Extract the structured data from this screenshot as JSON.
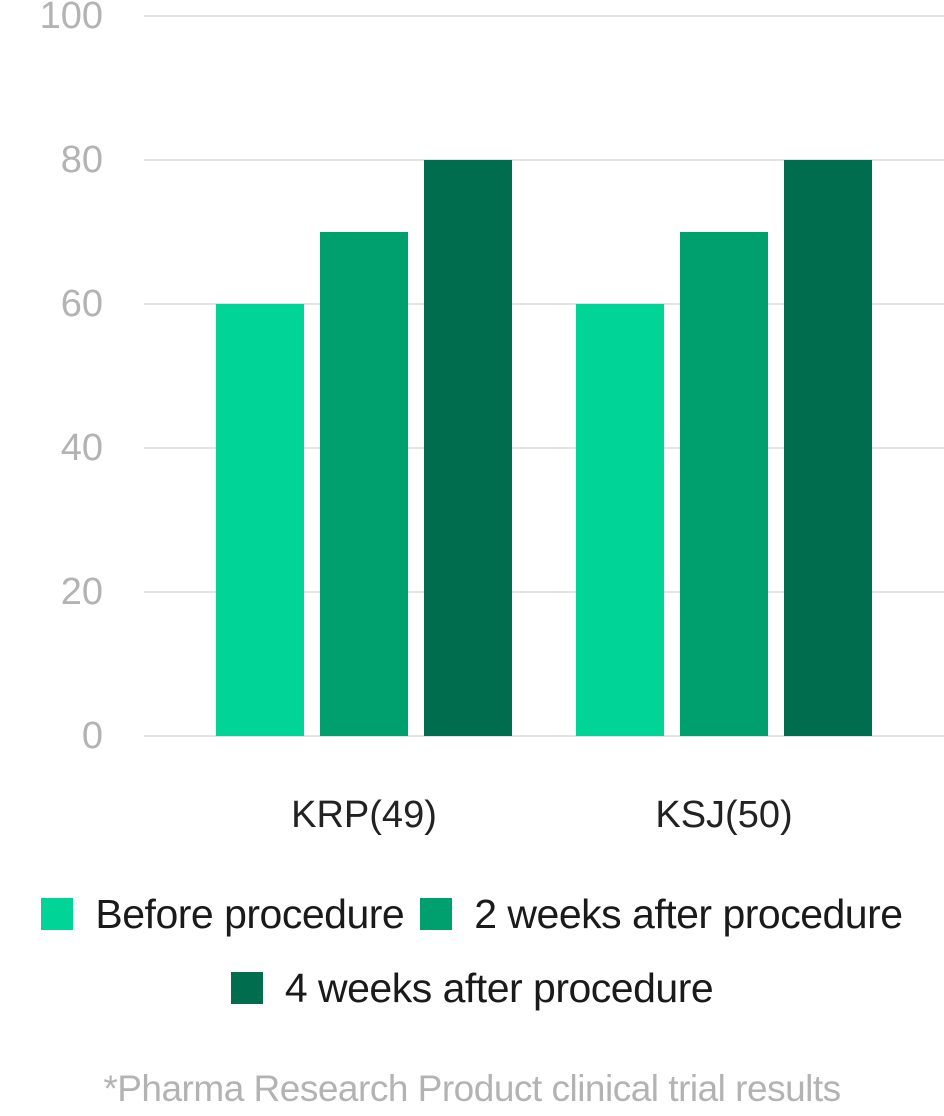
{
  "chart_data": {
    "type": "bar",
    "title": "",
    "xlabel": "",
    "ylabel": "",
    "categories": [
      "KRP(49)",
      "KSJ(50)"
    ],
    "series": [
      {
        "name": "Before procedure",
        "values": [
          60,
          60
        ],
        "color": "#00d496"
      },
      {
        "name": "2 weeks after procedure",
        "values": [
          70,
          70
        ],
        "color": "#00a06e"
      },
      {
        "name": "4 weeks after procedure",
        "values": [
          80,
          80
        ],
        "color": "#006e4e"
      }
    ],
    "ylim": [
      0,
      100
    ],
    "yticks": [
      "0",
      "20",
      "40",
      "60",
      "80",
      "100"
    ],
    "grid": true,
    "legend_position": "bottom"
  },
  "footnote": "*Pharma Research Product clinical trial results"
}
